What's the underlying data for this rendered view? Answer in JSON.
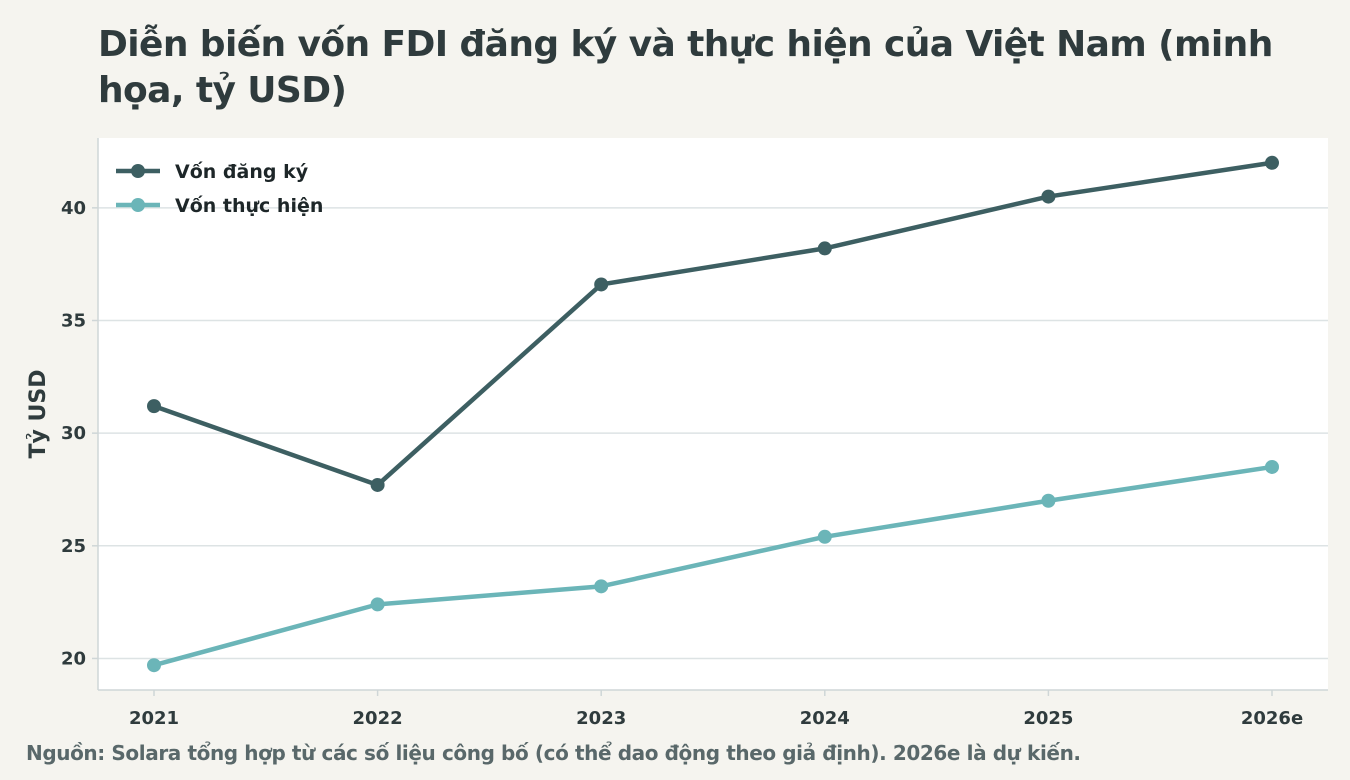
{
  "chart_data": {
    "type": "line",
    "title": "Diễn biến vốn FDI đăng ký và thực hiện của Việt Nam (minh họa, tỷ USD)",
    "ylabel": "Tỷ USD",
    "xlabel": "",
    "categories": [
      "2021",
      "2022",
      "2023",
      "2024",
      "2025",
      "2026e"
    ],
    "ylim": [
      18.6,
      43.1
    ],
    "yticks": [
      20,
      25,
      30,
      35,
      40
    ],
    "grid": true,
    "legend": "top-left",
    "series": [
      {
        "name": "Vốn đăng ký",
        "color": "#3d5f62",
        "values": [
          31.2,
          27.7,
          36.6,
          38.2,
          40.5,
          42.0
        ]
      },
      {
        "name": "Vốn thực hiện",
        "color": "#6bb5b8",
        "values": [
          19.7,
          22.4,
          23.2,
          25.4,
          27.0,
          28.5
        ]
      }
    ],
    "source": "Nguồn: Solara tổng hợp từ các số liệu công bố (có thể dao động theo giả định). 2026e là dự kiến."
  }
}
